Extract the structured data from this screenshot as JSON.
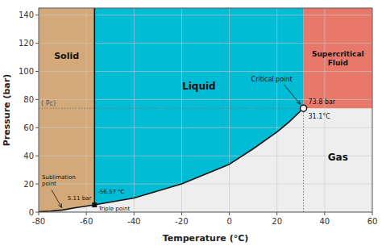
{
  "chart_data": {
    "type": "phase_diagram",
    "xlabel": "Temperature (°C)",
    "ylabel": "Pressure (bar)",
    "xlim": [
      -80,
      60
    ],
    "ylim": [
      0,
      145
    ],
    "xticks": [
      -80,
      -60,
      -40,
      -20,
      0,
      20,
      40,
      60
    ],
    "yticks": [
      0,
      20,
      40,
      60,
      80,
      100,
      120,
      140
    ],
    "grid": true,
    "regions": [
      {
        "name": "Solid",
        "color": "#d4a97a"
      },
      {
        "name": "Liquid",
        "color": "#00bcd4"
      },
      {
        "name": "Gas",
        "color": "#eeeeee"
      },
      {
        "name": "Supercritical\nFluid",
        "color": "#e8786a"
      }
    ],
    "curves": [
      {
        "x": [
          -80,
          -75,
          -70,
          -65,
          -56.57
        ],
        "values": [
          0.3,
          0.7,
          1.5,
          3.0,
          5.11
        ]
      },
      {
        "x": [
          -56.57,
          -40,
          -20,
          0,
          10,
          20,
          25,
          31.1
        ],
        "values": [
          5.11,
          10.0,
          20.0,
          34.0,
          45.0,
          57.0,
          64.0,
          73.8
        ]
      }
    ],
    "triple_point": {
      "x": -56.57,
      "value": 5.11,
      "label": "Triple point",
      "x_label": "-56.57 °C",
      "value_label": "5.11 bar"
    },
    "critical_point": {
      "x": 31.1,
      "value": 73.8,
      "label": "Critical point",
      "x_label": "31.1°C",
      "value_label": "73.8 bar",
      "axis_label": "( Pc)"
    },
    "sublimation_label": "Sublimation\npoint"
  }
}
